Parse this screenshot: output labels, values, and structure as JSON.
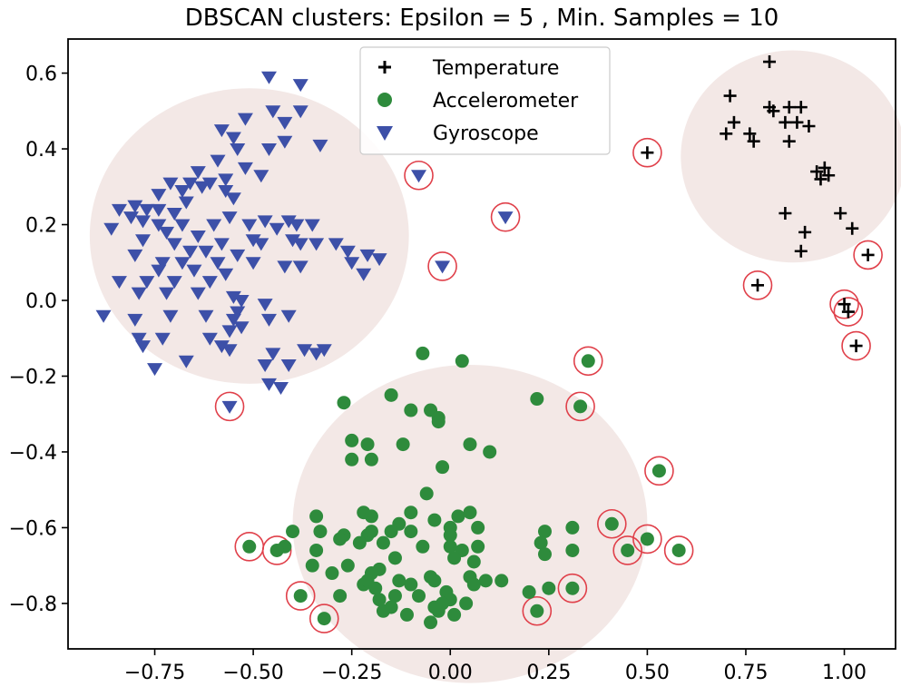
{
  "chart_data": {
    "type": "scatter",
    "title": "DBSCAN clusters: Epsilon = 5 , Min. Samples = 10",
    "xlabel": "",
    "ylabel": "",
    "xlim": [
      -0.97,
      1.13
    ],
    "ylim": [
      -0.92,
      0.69
    ],
    "xticks": [
      -0.75,
      -0.5,
      -0.25,
      0.0,
      0.25,
      0.5,
      0.75,
      1.0
    ],
    "xtick_labels": [
      "−0.75",
      "−0.50",
      "−0.25",
      "0.00",
      "0.25",
      "0.50",
      "0.75",
      "1.00"
    ],
    "yticks": [
      0.6,
      0.4,
      0.2,
      0.0,
      -0.2,
      -0.4,
      -0.6,
      -0.8
    ],
    "ytick_labels": [
      "0.6",
      "0.4",
      "0.2",
      "0.0",
      "−0.2",
      "−0.4",
      "−0.6",
      "−0.8"
    ],
    "legend_position": "top-center",
    "cluster_regions": [
      {
        "name": "Gyroscope cluster",
        "cx": -0.51,
        "cy": 0.17,
        "rx": 0.405,
        "ry": 0.39
      },
      {
        "name": "Accelerometer cluster",
        "cx": 0.05,
        "cy": -0.59,
        "rx": 0.45,
        "ry": 0.42
      },
      {
        "name": "Temperature cluster",
        "cx": 0.87,
        "cy": 0.38,
        "rx": 0.285,
        "ry": 0.28
      }
    ],
    "series": [
      {
        "name": "Temperature",
        "marker": "plus",
        "color": "#000000",
        "points": [
          [
            0.81,
            0.63
          ],
          [
            0.71,
            0.54
          ],
          [
            0.81,
            0.51
          ],
          [
            0.82,
            0.5
          ],
          [
            0.86,
            0.51
          ],
          [
            0.89,
            0.51
          ],
          [
            0.72,
            0.47
          ],
          [
            0.85,
            0.47
          ],
          [
            0.88,
            0.47
          ],
          [
            0.91,
            0.46
          ],
          [
            0.7,
            0.44
          ],
          [
            0.76,
            0.44
          ],
          [
            0.77,
            0.42
          ],
          [
            0.86,
            0.42
          ],
          [
            0.93,
            0.34
          ],
          [
            0.95,
            0.35
          ],
          [
            0.96,
            0.33
          ],
          [
            0.94,
            0.32
          ],
          [
            0.85,
            0.23
          ],
          [
            0.99,
            0.23
          ],
          [
            1.02,
            0.19
          ],
          [
            0.9,
            0.18
          ],
          [
            0.89,
            0.13
          ]
        ],
        "outliers": [
          [
            0.5,
            0.39
          ],
          [
            0.78,
            0.04
          ],
          [
            1.0,
            -0.01
          ],
          [
            1.01,
            -0.03
          ],
          [
            1.06,
            0.12
          ],
          [
            1.03,
            -0.12
          ]
        ]
      },
      {
        "name": "Accelerometer",
        "marker": "circle",
        "color": "#2e8b3c",
        "points": [
          [
            -0.07,
            -0.14
          ],
          [
            0.03,
            -0.16
          ],
          [
            -0.27,
            -0.27
          ],
          [
            -0.15,
            -0.25
          ],
          [
            -0.1,
            -0.29
          ],
          [
            -0.05,
            -0.29
          ],
          [
            -0.03,
            -0.31
          ],
          [
            0.22,
            -0.26
          ],
          [
            -0.03,
            -0.32
          ],
          [
            -0.25,
            -0.37
          ],
          [
            -0.21,
            -0.38
          ],
          [
            -0.12,
            -0.38
          ],
          [
            0.05,
            -0.38
          ],
          [
            0.1,
            -0.4
          ],
          [
            -0.25,
            -0.42
          ],
          [
            -0.2,
            -0.42
          ],
          [
            -0.02,
            -0.44
          ],
          [
            -0.06,
            -0.51
          ],
          [
            -0.34,
            -0.57
          ],
          [
            -0.22,
            -0.56
          ],
          [
            -0.2,
            -0.57
          ],
          [
            0.05,
            -0.56
          ],
          [
            -0.13,
            -0.59
          ],
          [
            -0.1,
            -0.56
          ],
          [
            -0.04,
            -0.58
          ],
          [
            0.0,
            -0.6
          ],
          [
            0.02,
            -0.57
          ],
          [
            0.07,
            -0.6
          ],
          [
            -0.4,
            -0.61
          ],
          [
            -0.33,
            -0.61
          ],
          [
            -0.27,
            -0.62
          ],
          [
            -0.21,
            -0.62
          ],
          [
            -0.2,
            -0.61
          ],
          [
            -0.15,
            -0.61
          ],
          [
            -0.1,
            -0.61
          ],
          [
            0.0,
            -0.62
          ],
          [
            0.24,
            -0.61
          ],
          [
            0.31,
            -0.6
          ],
          [
            -0.42,
            -0.65
          ],
          [
            -0.34,
            -0.66
          ],
          [
            -0.28,
            -0.63
          ],
          [
            -0.23,
            -0.64
          ],
          [
            -0.17,
            -0.64
          ],
          [
            -0.07,
            -0.65
          ],
          [
            0.0,
            -0.65
          ],
          [
            0.03,
            -0.66
          ],
          [
            0.07,
            -0.65
          ],
          [
            0.23,
            -0.64
          ],
          [
            -0.35,
            -0.7
          ],
          [
            -0.26,
            -0.7
          ],
          [
            -0.18,
            -0.71
          ],
          [
            -0.14,
            -0.68
          ],
          [
            0.01,
            -0.68
          ],
          [
            0.06,
            -0.69
          ],
          [
            0.24,
            -0.67
          ],
          [
            0.31,
            -0.66
          ],
          [
            -0.3,
            -0.72
          ],
          [
            -0.2,
            -0.72
          ],
          [
            -0.13,
            -0.74
          ],
          [
            -0.05,
            -0.73
          ],
          [
            0.05,
            -0.73
          ],
          [
            0.09,
            -0.74
          ],
          [
            0.13,
            -0.74
          ],
          [
            -0.22,
            -0.75
          ],
          [
            -0.21,
            -0.74
          ],
          [
            -0.1,
            -0.75
          ],
          [
            -0.04,
            -0.74
          ],
          [
            -0.19,
            -0.76
          ],
          [
            -0.01,
            -0.77
          ],
          [
            0.06,
            -0.75
          ],
          [
            0.2,
            -0.77
          ],
          [
            0.25,
            -0.76
          ],
          [
            -0.28,
            -0.78
          ],
          [
            -0.18,
            -0.79
          ],
          [
            -0.14,
            -0.78
          ],
          [
            -0.08,
            -0.78
          ],
          [
            0.0,
            -0.79
          ],
          [
            -0.15,
            -0.81
          ],
          [
            -0.04,
            -0.81
          ],
          [
            -0.02,
            -0.8
          ],
          [
            0.04,
            -0.8
          ],
          [
            -0.17,
            -0.82
          ],
          [
            -0.11,
            -0.83
          ],
          [
            -0.03,
            -0.82
          ],
          [
            0.01,
            -0.83
          ],
          [
            -0.05,
            -0.85
          ]
        ],
        "outliers": [
          [
            0.35,
            -0.16
          ],
          [
            0.33,
            -0.28
          ],
          [
            0.53,
            -0.45
          ],
          [
            -0.51,
            -0.65
          ],
          [
            -0.44,
            -0.66
          ],
          [
            -0.38,
            -0.78
          ],
          [
            -0.32,
            -0.84
          ],
          [
            0.22,
            -0.82
          ],
          [
            0.31,
            -0.76
          ],
          [
            0.41,
            -0.59
          ],
          [
            0.45,
            -0.66
          ],
          [
            0.5,
            -0.63
          ],
          [
            0.58,
            -0.66
          ]
        ]
      },
      {
        "name": "Gyroscope",
        "marker": "triangle_down",
        "color": "#3d50a8",
        "points": [
          [
            -0.46,
            0.59
          ],
          [
            -0.38,
            0.57
          ],
          [
            -0.38,
            0.5
          ],
          [
            -0.45,
            0.5
          ],
          [
            -0.42,
            0.47
          ],
          [
            -0.52,
            0.48
          ],
          [
            -0.58,
            0.45
          ],
          [
            -0.55,
            0.43
          ],
          [
            -0.42,
            0.42
          ],
          [
            -0.54,
            0.4
          ],
          [
            -0.46,
            0.4
          ],
          [
            -0.33,
            0.41
          ],
          [
            -0.59,
            0.37
          ],
          [
            -0.52,
            0.35
          ],
          [
            -0.64,
            0.34
          ],
          [
            -0.48,
            0.33
          ],
          [
            -0.61,
            0.31
          ],
          [
            -0.57,
            0.32
          ],
          [
            -0.66,
            0.31
          ],
          [
            -0.71,
            0.31
          ],
          [
            -0.63,
            0.3
          ],
          [
            -0.68,
            0.29
          ],
          [
            -0.57,
            0.29
          ],
          [
            -0.74,
            0.28
          ],
          [
            -0.55,
            0.27
          ],
          [
            -0.67,
            0.26
          ],
          [
            -0.74,
            0.24
          ],
          [
            -0.77,
            0.24
          ],
          [
            -0.8,
            0.25
          ],
          [
            -0.84,
            0.24
          ],
          [
            -0.7,
            0.23
          ],
          [
            -0.56,
            0.22
          ],
          [
            -0.47,
            0.21
          ],
          [
            -0.41,
            0.21
          ],
          [
            -0.39,
            0.2
          ],
          [
            -0.81,
            0.22
          ],
          [
            -0.78,
            0.21
          ],
          [
            -0.74,
            0.2
          ],
          [
            -0.68,
            0.2
          ],
          [
            -0.6,
            0.2
          ],
          [
            -0.51,
            0.2
          ],
          [
            -0.44,
            0.19
          ],
          [
            -0.35,
            0.2
          ],
          [
            -0.86,
            0.19
          ],
          [
            -0.72,
            0.18
          ],
          [
            -0.64,
            0.17
          ],
          [
            -0.5,
            0.16
          ],
          [
            -0.4,
            0.16
          ],
          [
            -0.78,
            0.16
          ],
          [
            -0.7,
            0.15
          ],
          [
            -0.58,
            0.15
          ],
          [
            -0.48,
            0.15
          ],
          [
            -0.38,
            0.15
          ],
          [
            -0.34,
            0.15
          ],
          [
            -0.29,
            0.15
          ],
          [
            -0.26,
            0.13
          ],
          [
            -0.21,
            0.12
          ],
          [
            -0.66,
            0.13
          ],
          [
            -0.62,
            0.13
          ],
          [
            -0.54,
            0.12
          ],
          [
            -0.8,
            0.12
          ],
          [
            -0.73,
            0.1
          ],
          [
            -0.68,
            0.1
          ],
          [
            -0.59,
            0.1
          ],
          [
            -0.5,
            0.1
          ],
          [
            -0.42,
            0.09
          ],
          [
            -0.38,
            0.09
          ],
          [
            -0.25,
            0.1
          ],
          [
            -0.18,
            0.11
          ],
          [
            -0.74,
            0.08
          ],
          [
            -0.65,
            0.08
          ],
          [
            -0.57,
            0.07
          ],
          [
            -0.22,
            0.07
          ],
          [
            -0.84,
            0.05
          ],
          [
            -0.77,
            0.05
          ],
          [
            -0.7,
            0.05
          ],
          [
            -0.61,
            0.05
          ],
          [
            -0.79,
            0.02
          ],
          [
            -0.72,
            0.02
          ],
          [
            -0.64,
            0.02
          ],
          [
            -0.55,
            0.01
          ],
          [
            -0.53,
            0.0
          ],
          [
            -0.54,
            -0.03
          ],
          [
            -0.47,
            -0.01
          ],
          [
            -0.88,
            -0.04
          ],
          [
            -0.8,
            -0.05
          ],
          [
            -0.71,
            -0.04
          ],
          [
            -0.62,
            -0.04
          ],
          [
            -0.55,
            -0.05
          ],
          [
            -0.46,
            -0.05
          ],
          [
            -0.41,
            -0.04
          ],
          [
            -0.56,
            -0.08
          ],
          [
            -0.53,
            -0.07
          ],
          [
            -0.73,
            -0.1
          ],
          [
            -0.61,
            -0.1
          ],
          [
            -0.79,
            -0.1
          ],
          [
            -0.78,
            -0.12
          ],
          [
            -0.58,
            -0.12
          ],
          [
            -0.56,
            -0.13
          ],
          [
            -0.45,
            -0.14
          ],
          [
            -0.37,
            -0.13
          ],
          [
            -0.34,
            -0.14
          ],
          [
            -0.32,
            -0.13
          ],
          [
            -0.67,
            -0.16
          ],
          [
            -0.47,
            -0.17
          ],
          [
            -0.41,
            -0.17
          ],
          [
            -0.75,
            -0.18
          ],
          [
            -0.46,
            -0.22
          ],
          [
            -0.43,
            -0.23
          ]
        ],
        "outliers": [
          [
            -0.08,
            0.33
          ],
          [
            0.14,
            0.22
          ],
          [
            -0.02,
            0.09
          ],
          [
            -0.56,
            -0.28
          ]
        ]
      }
    ]
  }
}
